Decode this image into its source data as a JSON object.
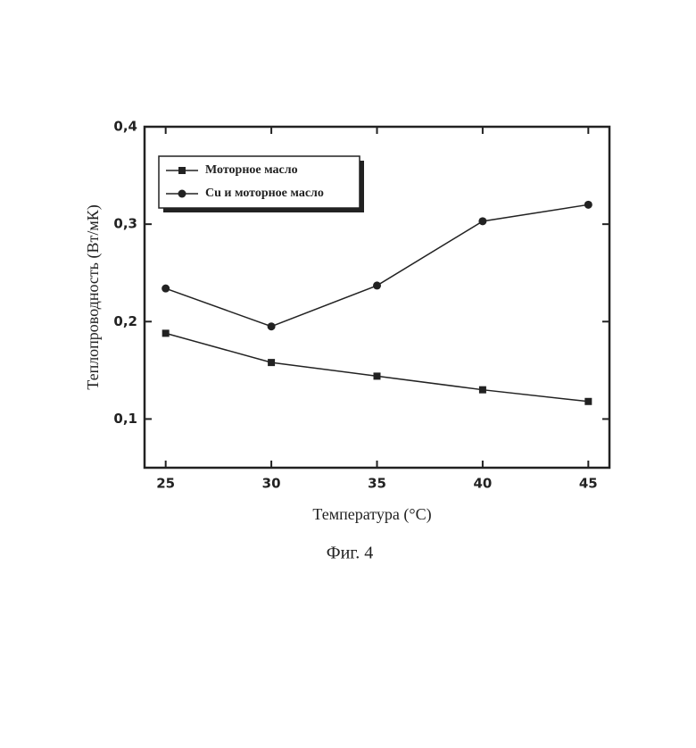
{
  "chart_data": {
    "type": "line",
    "x_label": "Температура (°C)",
    "y_label": "Теплопроводность (Вт/мК)",
    "caption": "Фиг. 4",
    "x": [
      25,
      30,
      35,
      40,
      45
    ],
    "series": [
      {
        "name": "Моторное масло",
        "color": "#222222",
        "marker": "square",
        "values": [
          0.188,
          0.158,
          0.144,
          0.13,
          0.118
        ]
      },
      {
        "name": "Cu и моторное масло",
        "color": "#222222",
        "marker": "circle",
        "values": [
          0.234,
          0.195,
          0.237,
          0.303,
          0.32
        ]
      }
    ],
    "xlim": [
      24,
      46
    ],
    "ylim": [
      0.05,
      0.4
    ],
    "xticks": [
      25,
      30,
      35,
      40,
      45
    ],
    "yticks": [
      {
        "value": 0.1,
        "label": "0,1"
      },
      {
        "value": 0.2,
        "label": "0,2"
      },
      {
        "value": 0.3,
        "label": "0,3"
      },
      {
        "value": 0.4,
        "label": "0,4"
      }
    ],
    "legend": "upper-left"
  }
}
